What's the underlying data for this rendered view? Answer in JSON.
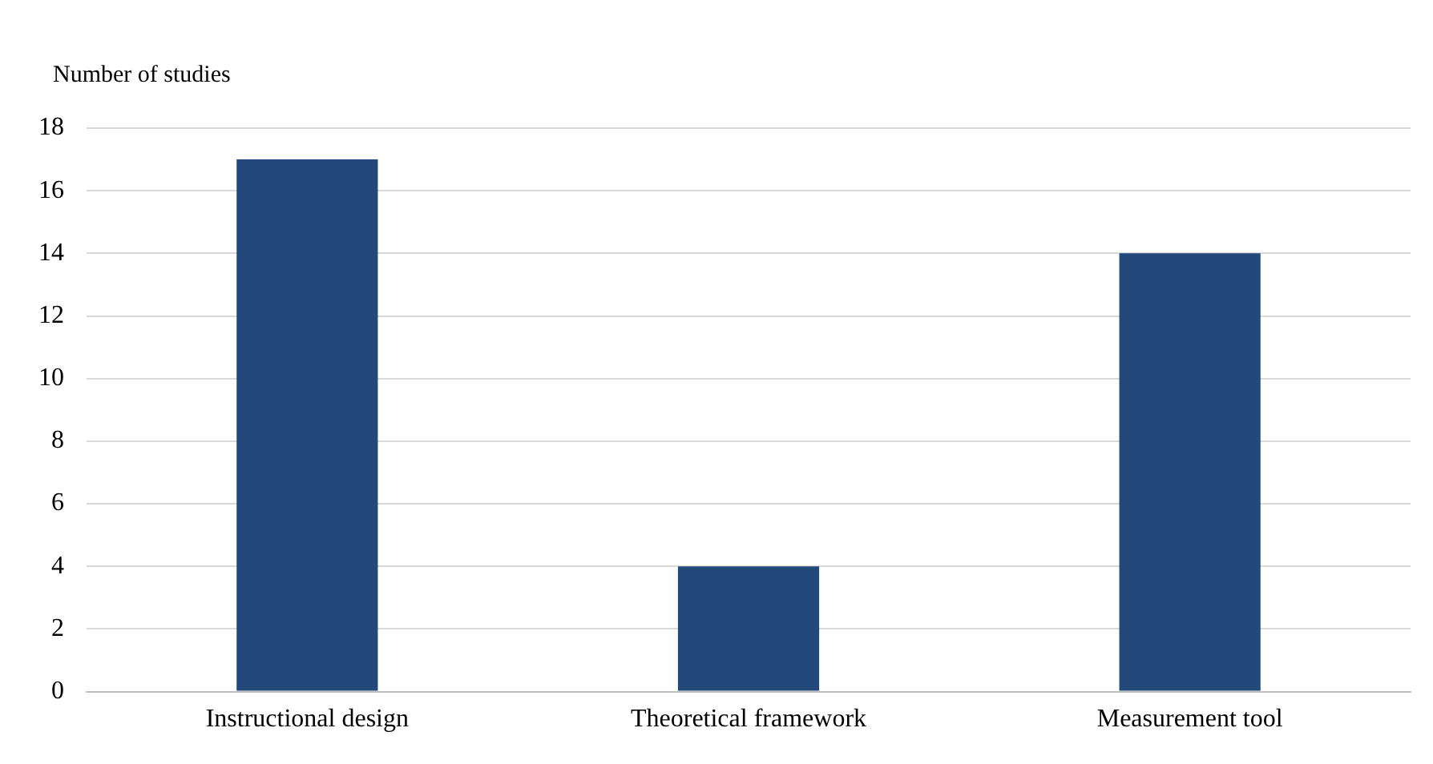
{
  "chart_data": {
    "type": "bar",
    "ylabel": "Number of studies",
    "categories": [
      "Instructional design",
      "Theoretical framework",
      "Measurement tool"
    ],
    "values": [
      17,
      4,
      14
    ],
    "color": "#22497a",
    "ylim": [
      0,
      18
    ],
    "yticks": [
      0,
      2,
      4,
      6,
      8,
      10,
      12,
      14,
      16,
      18
    ],
    "grid": "y",
    "legend": false
  }
}
